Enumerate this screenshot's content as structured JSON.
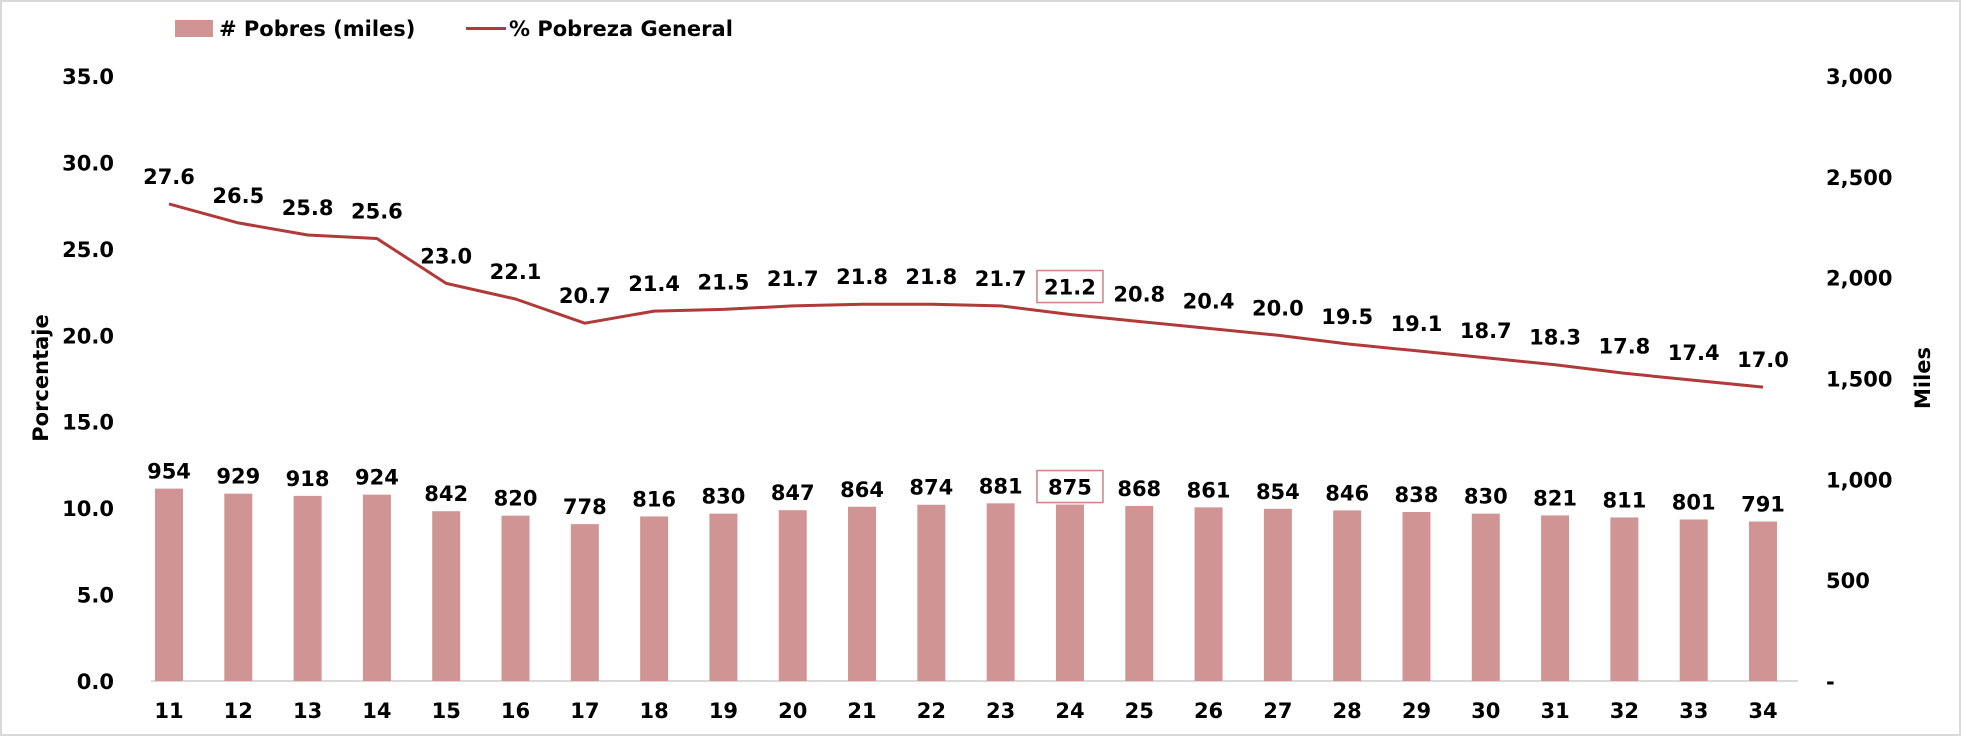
{
  "chart_data": {
    "type": "bar",
    "categories": [
      "11",
      "12",
      "13",
      "14",
      "15",
      "16",
      "17",
      "18",
      "19",
      "20",
      "21",
      "22",
      "23",
      "24",
      "25",
      "26",
      "27",
      "28",
      "29",
      "30",
      "31",
      "32",
      "33",
      "34"
    ],
    "series": [
      {
        "name": "# Pobres (miles)",
        "type": "bar",
        "axis": "right",
        "color": "#d09494",
        "values": [
          954,
          929,
          918,
          924,
          842,
          820,
          778,
          816,
          830,
          847,
          864,
          874,
          881,
          875,
          868,
          861,
          854,
          846,
          838,
          830,
          821,
          811,
          801,
          791
        ]
      },
      {
        "name": "% Pobreza General",
        "type": "line",
        "axis": "left",
        "color": "#b03a3a",
        "values": [
          27.6,
          26.5,
          25.8,
          25.6,
          23.0,
          22.1,
          20.7,
          21.4,
          21.5,
          21.7,
          21.8,
          21.8,
          21.7,
          21.2,
          20.8,
          20.4,
          20.0,
          19.5,
          19.1,
          18.7,
          18.3,
          17.8,
          17.4,
          17.0
        ]
      }
    ],
    "highlighted_category": "24",
    "y_left": {
      "label": "Porcentaje",
      "range": [
        0,
        35
      ],
      "ticks": [
        "0.0",
        "5.0",
        "10.0",
        "15.0",
        "20.0",
        "25.0",
        "30.0",
        "35.0"
      ]
    },
    "y_right": {
      "label": "Miles",
      "range": [
        0,
        3000
      ],
      "ticks": [
        "-",
        "500",
        "1,000",
        "1,500",
        "2,000",
        "2,500",
        "3,000"
      ]
    },
    "xlabel": "",
    "grid": false,
    "legend_position": "top-left"
  }
}
